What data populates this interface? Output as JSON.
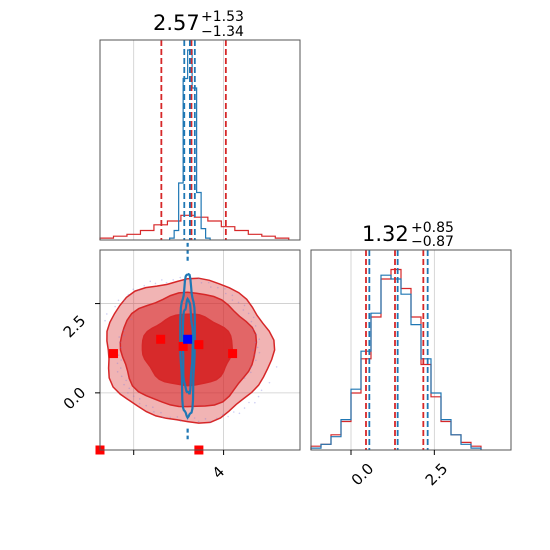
{
  "chart_data": [
    {
      "panel": "marginal-x",
      "type": "histogram",
      "title": {
        "value": "2.57",
        "plus": "+1.53",
        "minus": "−1.34"
      },
      "xlim": [
        -1.5,
        7.4
      ],
      "quantiles": {
        "red": [
          1.23,
          2.57,
          4.1
        ],
        "blue": [
          2.25,
          2.5,
          2.72
        ]
      },
      "series": [
        {
          "color": "#d62728",
          "bin_edges": [
            -1.5,
            -0.9,
            -0.3,
            0.3,
            0.9,
            1.5,
            2.1,
            2.7,
            3.3,
            3.9,
            4.5,
            5.1,
            5.7,
            6.3,
            6.9
          ],
          "values": [
            0.01,
            0.02,
            0.03,
            0.05,
            0.08,
            0.1,
            0.13,
            0.12,
            0.1,
            0.07,
            0.05,
            0.03,
            0.02,
            0.01
          ]
        },
        {
          "color": "#1f77b4",
          "bin_edges": [
            1.6,
            1.8,
            2.0,
            2.2,
            2.4,
            2.6,
            2.8,
            3.0,
            3.2,
            3.4
          ],
          "values": [
            0.01,
            0.05,
            0.3,
            0.85,
            1.0,
            0.8,
            0.25,
            0.06,
            0.01
          ]
        }
      ]
    },
    {
      "panel": "marginal-y",
      "type": "histogram",
      "title": {
        "value": "1.32",
        "plus": "+0.85",
        "minus": "−0.87"
      },
      "xlim": [
        -1.2,
        4.8
      ],
      "xticks": [
        "0.0",
        "2.5"
      ],
      "quantiles": {
        "red": [
          0.45,
          1.32,
          2.17
        ],
        "blue": [
          0.55,
          1.4,
          2.3
        ]
      },
      "series": [
        {
          "color": "#d62728",
          "bin_edges": [
            -1.2,
            -0.9,
            -0.6,
            -0.3,
            0.0,
            0.3,
            0.6,
            0.9,
            1.2,
            1.5,
            1.8,
            2.1,
            2.4,
            2.7,
            3.0,
            3.3,
            3.6,
            3.9
          ],
          "values": [
            0.02,
            0.03,
            0.08,
            0.15,
            0.3,
            0.48,
            0.7,
            0.9,
            0.95,
            0.85,
            0.7,
            0.45,
            0.28,
            0.15,
            0.08,
            0.04,
            0.02
          ]
        },
        {
          "color": "#1f77b4",
          "bin_edges": [
            -1.2,
            -0.9,
            -0.6,
            -0.3,
            0.0,
            0.3,
            0.6,
            0.9,
            1.2,
            1.5,
            1.8,
            2.1,
            2.4,
            2.7,
            3.0,
            3.3,
            3.6,
            3.9
          ],
          "values": [
            0.01,
            0.03,
            0.07,
            0.16,
            0.32,
            0.52,
            0.72,
            0.92,
            0.9,
            0.82,
            0.66,
            0.48,
            0.3,
            0.16,
            0.08,
            0.03,
            0.01
          ]
        }
      ]
    },
    {
      "panel": "joint",
      "type": "contour",
      "xlim": [
        -1.5,
        7.4
      ],
      "ylim": [
        -1.6,
        4.0
      ],
      "xticks": [
        "4"
      ],
      "yticks": [
        "0.0",
        "2.5"
      ],
      "red_contours": {
        "color": "#d62728",
        "center": [
          2.4,
          1.2
        ],
        "levels": [
          {
            "rx": 2.0,
            "ry": 1.0
          },
          {
            "rx": 3.0,
            "ry": 1.6
          },
          {
            "rx": 3.7,
            "ry": 2.0
          }
        ]
      },
      "blue_contours": {
        "color": "#1f77b4",
        "center": [
          2.4,
          1.3
        ],
        "levels": [
          {
            "rx": 0.22,
            "ry": 1.3
          },
          {
            "rx": 0.32,
            "ry": 2.0
          }
        ]
      },
      "red_points": [
        [
          -0.9,
          1.1
        ],
        [
          1.2,
          1.5
        ],
        [
          2.2,
          1.3
        ],
        [
          2.9,
          1.35
        ],
        [
          4.4,
          1.1
        ],
        [
          2.9,
          -1.6
        ],
        [
          -1.5,
          -1.8
        ]
      ],
      "blue_points": [
        [
          2.4,
          1.5
        ]
      ]
    }
  ]
}
